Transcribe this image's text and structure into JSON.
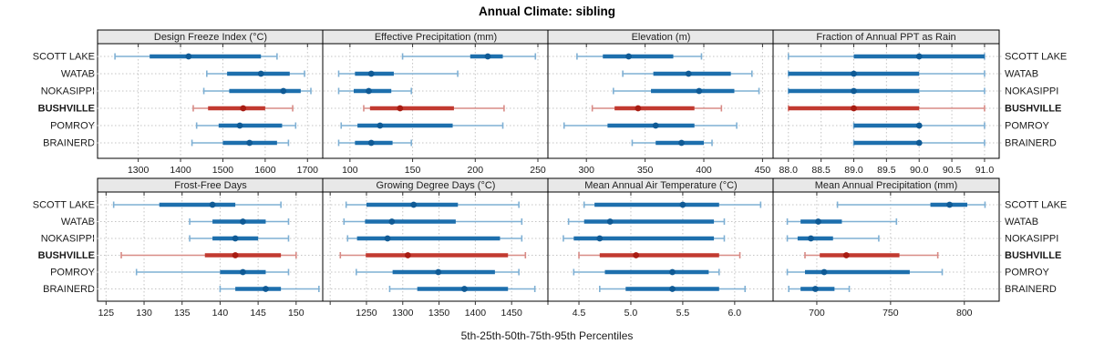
{
  "title": "Annual Climate: sibling",
  "footer": "5th-25th-50th-75th-95th Percentiles",
  "sites": [
    "SCOTT LAKE",
    "WATAB",
    "NOKASIPPI",
    "BUSHVILLE",
    "POMROY",
    "BRAINERD"
  ],
  "highlight_site": "BUSHVILLE",
  "colors": {
    "blue_line": "#7fb0d4",
    "blue_band": "#1d6fad",
    "blue_dot": "#0f5a95",
    "red_line": "#d88b86",
    "red_band": "#c23a30",
    "red_dot": "#a81c12",
    "strip_bg": "#e8e8e8",
    "grid": "#c4c4c4",
    "panel_border": "#000000",
    "text": "#1a1a1a"
  },
  "chart_data": {
    "type": "percentile-dotplot",
    "title": "Annual Climate: sibling",
    "xlabel": "5th-25th-50th-75th-95th Percentiles",
    "percentile_labels": [
      "5th",
      "25th",
      "50th",
      "75th",
      "95th"
    ],
    "legend_position": "none",
    "grid": "dotted",
    "rows": [
      "SCOTT LAKE",
      "WATAB",
      "NOKASIPPI",
      "BUSHVILLE",
      "POMROY",
      "BRAINERD"
    ],
    "highlight": "BUSHVILLE",
    "panels": [
      {
        "title": "Design Freeze Index (°C)",
        "row": 0,
        "col": 0,
        "xlim": [
          1206,
          1736
        ],
        "ticks": [
          1300,
          1400,
          1500,
          1600,
          1700
        ],
        "tick_labels": [
          "1300",
          "1400",
          "1500",
          "1600",
          "1700"
        ],
        "series": {
          "SCOTT LAKE": [
            1245,
            1327,
            1419,
            1590,
            1628
          ],
          "WATAB": [
            1462,
            1510,
            1590,
            1658,
            1693
          ],
          "NOKASIPPI": [
            1455,
            1515,
            1643,
            1684,
            1708
          ],
          "BUSHVILLE": [
            1430,
            1465,
            1548,
            1600,
            1665
          ],
          "POMROY": [
            1438,
            1490,
            1540,
            1640,
            1672
          ],
          "BRAINERD": [
            1427,
            1500,
            1563,
            1628,
            1655
          ]
        }
      },
      {
        "title": "Effective Precipitation (mm)",
        "row": 0,
        "col": 1,
        "xlim": [
          79,
          258
        ],
        "ticks": [
          100,
          150,
          200,
          250
        ],
        "tick_labels": [
          "100",
          "150",
          "200",
          "250"
        ],
        "series": {
          "SCOTT LAKE": [
            142,
            196,
            210,
            222,
            248
          ],
          "WATAB": [
            91,
            104,
            117,
            135,
            186
          ],
          "NOKASIPPI": [
            91,
            103,
            115,
            133,
            149
          ],
          "BUSHVILLE": [
            111,
            116,
            140,
            183,
            223
          ],
          "POMROY": [
            93,
            106,
            124,
            182,
            222
          ],
          "BRAINERD": [
            91,
            104,
            117,
            134,
            149
          ]
        }
      },
      {
        "title": "Elevation (m)",
        "row": 0,
        "col": 2,
        "xlim": [
          268,
          459
        ],
        "ticks": [
          300,
          350,
          400,
          450
        ],
        "tick_labels": [
          "300",
          "350",
          "400",
          "450"
        ],
        "series": {
          "SCOTT LAKE": [
            292,
            314,
            336,
            374,
            398
          ],
          "WATAB": [
            331,
            357,
            387,
            423,
            441
          ],
          "NOKASIPPI": [
            323,
            355,
            396,
            426,
            447
          ],
          "BUSHVILLE": [
            305,
            324,
            344,
            392,
            415
          ],
          "POMROY": [
            281,
            318,
            359,
            392,
            428
          ],
          "BRAINERD": [
            339,
            359,
            381,
            400,
            407
          ]
        }
      },
      {
        "title": "Fraction of Annual PPT as Rain",
        "row": 0,
        "col": 3,
        "xlim": [
          87.78,
          91.21
        ],
        "ticks": [
          88,
          88.5,
          89,
          89.5,
          90,
          90.5,
          91
        ],
        "tick_labels": [
          "88.0",
          "88.5",
          "89.0",
          "89.5",
          "90.0",
          "90.5",
          "91.0"
        ],
        "series": {
          "SCOTT LAKE": [
            88,
            89,
            90,
            91,
            91
          ],
          "WATAB": [
            88,
            88,
            89,
            90,
            91
          ],
          "NOKASIPPI": [
            88,
            88,
            89,
            90,
            91
          ],
          "BUSHVILLE": [
            88,
            88,
            89,
            90,
            91
          ],
          "POMROY": [
            89,
            89,
            90,
            90,
            91
          ],
          "BRAINERD": [
            89,
            89,
            90,
            90,
            91
          ]
        }
      },
      {
        "title": "Frost-Free Days",
        "row": 1,
        "col": 0,
        "xlim": [
          124,
          153.5
        ],
        "ticks": [
          125,
          130,
          135,
          140,
          145,
          150
        ],
        "tick_labels": [
          "125",
          "130",
          "135",
          "140",
          "145",
          "150"
        ],
        "series": {
          "SCOTT LAKE": [
            126,
            132,
            139,
            142,
            148
          ],
          "WATAB": [
            136,
            139,
            143,
            146,
            149
          ],
          "NOKASIPPI": [
            136,
            139,
            142,
            145,
            149
          ],
          "BUSHVILLE": [
            127,
            138,
            142,
            148,
            150
          ],
          "POMROY": [
            129,
            140,
            143,
            146,
            149
          ],
          "BRAINERD": [
            140,
            142,
            146,
            148,
            153
          ]
        }
      },
      {
        "title": "Growing Degree Days (°C)",
        "row": 1,
        "col": 1,
        "xlim": [
          1191,
          1500
        ],
        "ticks": [
          1200,
          1250,
          1300,
          1350,
          1400,
          1450,
          1500
        ],
        "tick_labels": [
          "",
          "1250",
          "1300",
          "1350",
          "1400",
          "1450",
          ""
        ],
        "series": {
          "SCOTT LAKE": [
            1222,
            1250,
            1315,
            1376,
            1460
          ],
          "WATAB": [
            1219,
            1248,
            1285,
            1373,
            1464
          ],
          "NOKASIPPI": [
            1224,
            1237,
            1279,
            1434,
            1464
          ],
          "BUSHVILLE": [
            1214,
            1249,
            1307,
            1445,
            1469
          ],
          "POMROY": [
            1236,
            1286,
            1349,
            1427,
            1460
          ],
          "BRAINERD": [
            1282,
            1320,
            1385,
            1445,
            1482
          ]
        }
      },
      {
        "title": "Mean Annual Air Temperature (°C)",
        "row": 1,
        "col": 2,
        "xlim": [
          4.21,
          6.37
        ],
        "ticks": [
          4.5,
          5.0,
          5.5,
          6.0
        ],
        "tick_labels": [
          "4.5",
          "5.0",
          "5.5",
          "6.0"
        ],
        "series": {
          "SCOTT LAKE": [
            4.55,
            4.65,
            5.5,
            5.85,
            6.25
          ],
          "WATAB": [
            4.4,
            4.55,
            4.8,
            5.8,
            5.9
          ],
          "NOKASIPPI": [
            4.35,
            4.45,
            4.7,
            5.8,
            5.9
          ],
          "BUSHVILLE": [
            4.5,
            4.7,
            5.05,
            5.85,
            6.05
          ],
          "POMROY": [
            4.45,
            4.75,
            5.4,
            5.75,
            5.85
          ],
          "BRAINERD": [
            4.7,
            4.95,
            5.4,
            5.85,
            6.1
          ]
        }
      },
      {
        "title": "Mean Annual Precipitation (mm)",
        "row": 1,
        "col": 3,
        "xlim": [
          671,
          823
        ],
        "ticks": [
          700,
          750,
          800
        ],
        "tick_labels": [
          "700",
          "750",
          "800"
        ],
        "series": {
          "SCOTT LAKE": [
            714,
            777,
            790,
            802,
            814
          ],
          "WATAB": [
            680,
            689,
            701,
            717,
            754
          ],
          "NOKASIPPI": [
            680,
            687,
            696,
            711,
            742
          ],
          "BUSHVILLE": [
            692,
            702,
            720,
            756,
            782
          ],
          "POMROY": [
            680,
            692,
            705,
            763,
            785
          ],
          "BRAINERD": [
            681,
            689,
            699,
            712,
            722
          ]
        }
      }
    ]
  }
}
